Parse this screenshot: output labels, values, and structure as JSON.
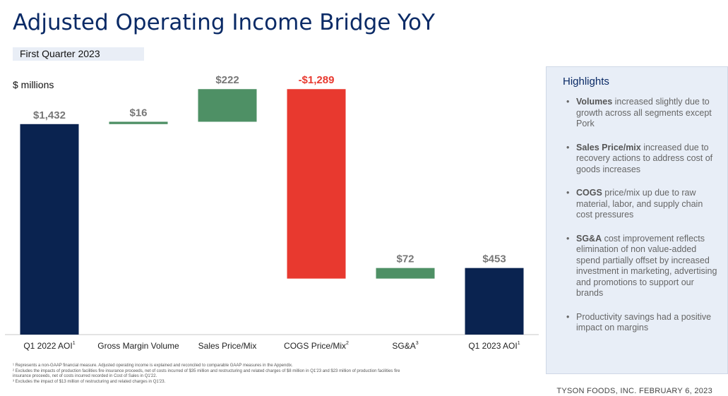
{
  "title": "Adjusted Operating Income Bridge YoY",
  "subtitle": "First Quarter 2023",
  "units_label": "$ millions",
  "chart_data": {
    "type": "bar",
    "subtype": "waterfall",
    "categories": [
      {
        "label": "Q1 2022 AOI",
        "sup": "1"
      },
      {
        "label": "Gross Margin Volume",
        "sup": ""
      },
      {
        "label": "Sales Price/Mix",
        "sup": ""
      },
      {
        "label": "COGS Price/Mix",
        "sup": "2"
      },
      {
        "label": "SG&A",
        "sup": "3"
      },
      {
        "label": "Q1 2023 AOI",
        "sup": "1"
      }
    ],
    "values": [
      1432,
      16,
      222,
      -1289,
      72,
      453
    ],
    "kinds": [
      "total",
      "delta",
      "delta",
      "delta",
      "delta",
      "total"
    ],
    "data_labels": [
      "$1,432",
      "$16",
      "$222",
      "-$1,289",
      "$72",
      "$453"
    ],
    "colors": {
      "total": "#0a2350",
      "increase": "#4e9065",
      "decrease": "#e8392f",
      "decrease_label": "#e8392f",
      "label": "#777777"
    },
    "ylim": [
      0,
      1700
    ]
  },
  "footnotes": [
    "¹ Represents a non-GAAP financial measure. Adjusted operating income is explained and reconciled to comparable GAAP measures in the Appendix.",
    "² Excludes the impacts of production facilities fire insurance proceeds, net of costs incurred of $35 million and restructuring and related charges of $8 million in Q1'23 and $23 million of production facilities fire",
    "insurance proceeds, net of costs incurred recorded in Cost of Sales in Q1'22.",
    "³ Excludes the impact of $13 million of restructuring and related charges in Q1'23."
  ],
  "highlights": {
    "title": "Highlights",
    "items": [
      {
        "bold": "Volumes",
        "text": " increased slightly due to growth across all segments except Pork"
      },
      {
        "bold": "Sales Price/mix",
        "text": " increased due to recovery actions to address cost of goods increases"
      },
      {
        "bold": "COGS",
        "text": " price/mix up due to raw material, labor, and supply chain cost pressures"
      },
      {
        "bold": "SG&A",
        "text": " cost improvement reflects elimination of non value-added spend partially offset by increased investment in marketing, advertising and promotions to support our brands"
      },
      {
        "bold": "",
        "text": "Productivity savings had a positive impact on margins"
      }
    ]
  },
  "footer": "TYSON FOODS, INC. FEBRUARY 6, 2023"
}
